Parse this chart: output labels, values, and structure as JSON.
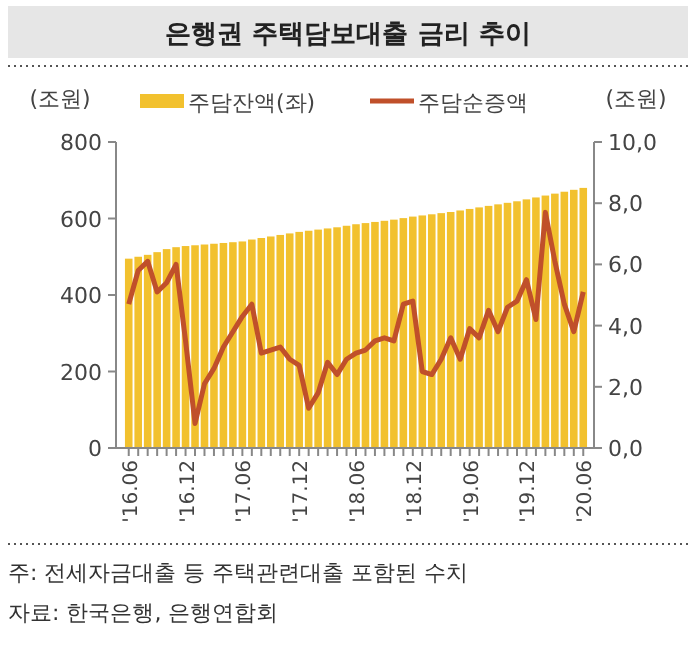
{
  "chart_data": {
    "type": "bar",
    "title": "은행권 주택담보대출 금리 추이",
    "categories": [
      "'16.06",
      null,
      null,
      null,
      null,
      null,
      "'16.12",
      null,
      null,
      null,
      null,
      null,
      "'17.06",
      null,
      null,
      null,
      null,
      null,
      "'17.12",
      null,
      null,
      null,
      null,
      null,
      "'18.06",
      null,
      null,
      null,
      null,
      null,
      "'18.12",
      null,
      null,
      null,
      null,
      null,
      "'19.06",
      null,
      null,
      null,
      null,
      null,
      "'19.12",
      null,
      null,
      null,
      null,
      null,
      "'20.06"
    ],
    "series": [
      {
        "name": "주담잔액(좌)",
        "color": "#f2c12e",
        "values": [
          495,
          500,
          505,
          512,
          520,
          525,
          528,
          530,
          532,
          534,
          536,
          538,
          540,
          545,
          549,
          553,
          557,
          561,
          565,
          568,
          571,
          574,
          577,
          581,
          585,
          588,
          591,
          594,
          597,
          601,
          605,
          608,
          611,
          614,
          617,
          621,
          625,
          629,
          633,
          637,
          641,
          645,
          650,
          655,
          660,
          665,
          670,
          675,
          680
        ]
      },
      {
        "name": "주담순증액",
        "type": "line",
        "axis": "y2",
        "color": "#c0502a",
        "values": [
          4.7,
          5.8,
          6.1,
          5.1,
          5.4,
          6.0,
          3.5,
          0.8,
          2.1,
          2.6,
          3.3,
          3.8,
          4.3,
          4.7,
          3.1,
          3.2,
          3.3,
          2.9,
          2.7,
          1.3,
          1.8,
          2.8,
          2.4,
          2.9,
          3.1,
          3.2,
          3.5,
          3.6,
          3.5,
          4.7,
          4.8,
          2.5,
          2.4,
          2.9,
          3.6,
          2.9,
          3.9,
          3.6,
          4.5,
          3.8,
          4.6,
          4.8,
          5.5,
          4.2,
          7.7,
          6.1,
          4.7,
          3.8,
          5.1
        ]
      }
    ],
    "ylabel": "(조원)",
    "y2label": "(조원)",
    "ylim": [
      0,
      800
    ],
    "yticks": [
      0,
      200,
      400,
      600,
      800
    ],
    "y2lim": [
      0,
      10
    ],
    "y2ticks": [
      {
        "value": 0,
        "label": "0,0"
      },
      {
        "value": 2,
        "label": "2,0"
      },
      {
        "value": 4,
        "label": "4,0"
      },
      {
        "value": 6,
        "label": "6,0"
      },
      {
        "value": 8,
        "label": "8,0"
      },
      {
        "value": 10,
        "label": "10,0"
      }
    ],
    "legend": "top",
    "grid": false,
    "annotations": [
      "주: 전세자금대출 등 주택관련대출 포함된 수치",
      "자료: 한국은행, 은행연합회"
    ]
  }
}
